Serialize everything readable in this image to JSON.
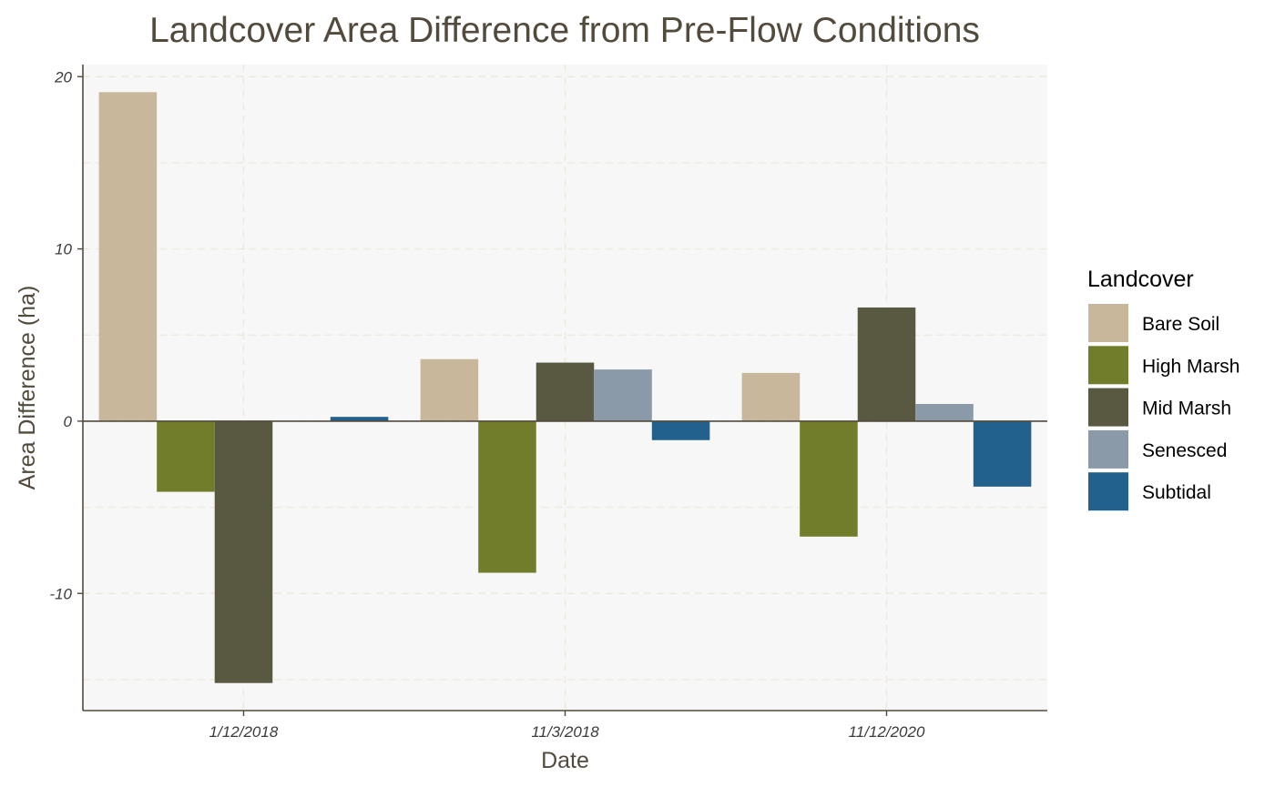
{
  "chart_data": {
    "type": "bar",
    "title": "Landcover Area Difference from Pre-Flow Conditions",
    "xlabel": "Date",
    "ylabel": "Area Difference (ha)",
    "categories": [
      "1/12/2018",
      "11/3/2018",
      "11/12/2020"
    ],
    "ylim": [
      -16.8,
      20.7
    ],
    "yticks": [
      -10,
      0,
      10,
      20
    ],
    "grid": true,
    "legend": {
      "title": "Landcover",
      "position": "right"
    },
    "series": [
      {
        "name": "Bare Soil",
        "color": "#c9b79c",
        "values": [
          19.1,
          3.6,
          2.8
        ]
      },
      {
        "name": "High Marsh",
        "color": "#717d2b",
        "values": [
          -4.1,
          -8.8,
          -6.7
        ]
      },
      {
        "name": "Mid Marsh",
        "color": "#595840",
        "values": [
          -15.2,
          3.4,
          6.6
        ]
      },
      {
        "name": "Senesced",
        "color": "#8a9aa8",
        "values": [
          null,
          3.0,
          1.0
        ]
      },
      {
        "name": "Subtidal",
        "color": "#22618d",
        "values": [
          0.25,
          -1.1,
          -3.8
        ]
      }
    ]
  }
}
